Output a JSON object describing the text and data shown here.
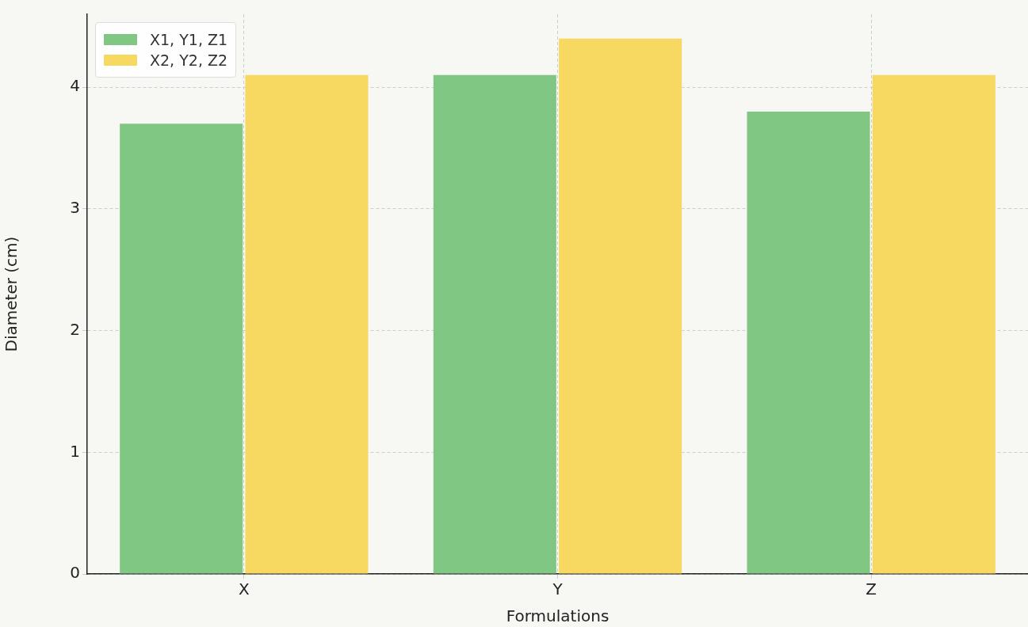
{
  "chart_data": {
    "type": "bar",
    "xlabel": "Formulations",
    "ylabel": "Diameter (cm)",
    "categories": [
      "X",
      "Y",
      "Z"
    ],
    "series": [
      {
        "name": "X1, Y1, Z1",
        "color": "#81c784",
        "values": [
          3.7,
          4.1,
          3.8
        ]
      },
      {
        "name": "X2, Y2, Z2",
        "color": "#f7d861",
        "values": [
          4.1,
          4.4,
          4.1
        ]
      }
    ],
    "ylim": [
      0,
      4.6
    ],
    "yticks": [
      0,
      1,
      2,
      3,
      4
    ],
    "grid": true,
    "legend": "top left"
  }
}
